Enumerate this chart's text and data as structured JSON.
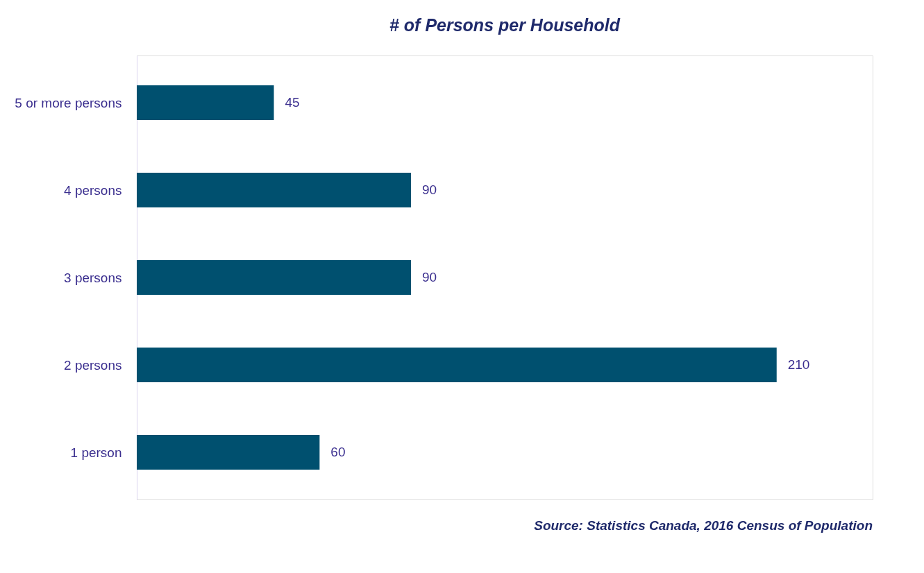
{
  "chart_data": {
    "type": "bar",
    "orientation": "horizontal",
    "title": "# of Persons per Household",
    "categories": [
      "5 or more persons",
      "4 persons",
      "3 persons",
      "2 persons",
      "1 person"
    ],
    "values": [
      45,
      90,
      90,
      210,
      60
    ],
    "color": "#00506f",
    "data_labels": true,
    "annotations": [
      "Source: Statistics Canada, 2016 Census of Population"
    ]
  }
}
